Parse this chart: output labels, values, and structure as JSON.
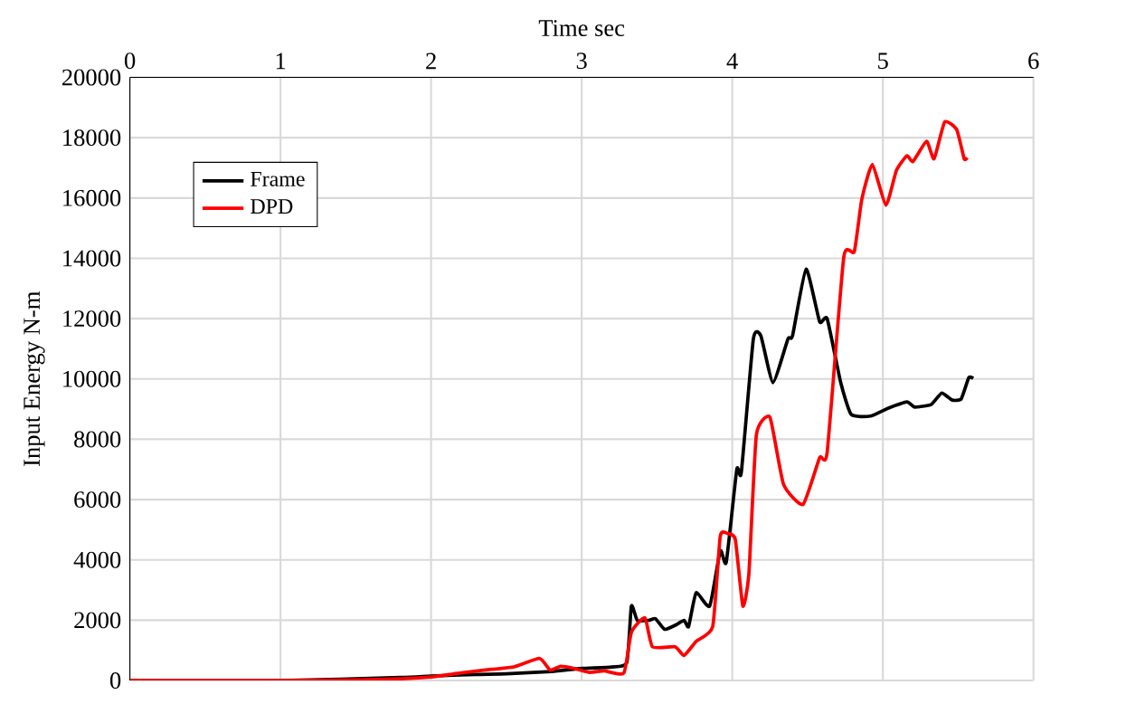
{
  "chart_data": {
    "type": "line",
    "xlabel": "Time sec",
    "ylabel": "Input Energy N-m",
    "xlim": [
      0,
      6
    ],
    "xticks": [
      0,
      1,
      2,
      3,
      4,
      5,
      6
    ],
    "ylim": [
      0,
      20000
    ],
    "yticks": [
      0,
      2000,
      4000,
      6000,
      8000,
      10000,
      12000,
      14000,
      16000,
      18000,
      20000
    ],
    "grid": true,
    "legend": "top left",
    "marker": "none",
    "line_style": "solid",
    "series": [
      {
        "name": "Frame",
        "color": "#000000",
        "x": [
          0,
          0.5,
          1,
          1.5,
          1.8,
          2.0,
          2.3,
          2.5,
          2.8,
          3.0,
          3.2,
          3.3,
          3.33,
          3.37,
          3.45,
          3.49,
          3.55,
          3.62,
          3.68,
          3.71,
          3.76,
          3.85,
          3.92,
          3.96,
          4.03,
          4.06,
          4.14,
          4.19,
          4.27,
          4.37,
          4.4,
          4.49,
          4.58,
          4.63,
          4.72,
          4.79,
          4.92,
          5.03,
          5.16,
          5.21,
          5.32,
          5.39,
          5.46,
          5.52,
          5.57,
          5.6
        ],
        "values": [
          0,
          0,
          0,
          null,
          100,
          150,
          200,
          220,
          300,
          400,
          450,
          600,
          2470,
          1990,
          2000,
          2050,
          1700,
          1830,
          1990,
          1790,
          2910,
          2470,
          4300,
          3920,
          7000,
          6900,
          11330,
          11430,
          9880,
          11330,
          11430,
          13640,
          11900,
          12000,
          9880,
          8820,
          8770,
          9020,
          9240,
          9070,
          9150,
          9530,
          9300,
          9340,
          10040,
          10020
        ]
      },
      {
        "name": "DPD",
        "color": "#ff0000",
        "x": [
          0,
          0.5,
          1,
          1.5,
          1.8,
          2.0,
          2.2,
          2.4,
          2.55,
          2.72,
          2.79,
          2.86,
          2.95,
          3.05,
          3.15,
          3.28,
          3.33,
          3.42,
          3.47,
          3.62,
          3.68,
          3.76,
          3.87,
          3.92,
          3.97,
          4.02,
          4.07,
          4.11,
          4.16,
          4.25,
          4.34,
          4.47,
          4.58,
          4.63,
          4.74,
          4.81,
          4.86,
          4.93,
          5.02,
          5.09,
          5.16,
          5.2,
          5.29,
          5.34,
          5.41,
          5.49,
          5.54,
          5.56
        ],
        "values": [
          0,
          0,
          0,
          20,
          60,
          120,
          250,
          370,
          450,
          730,
          350,
          470,
          400,
          270,
          320,
          250,
          1600,
          2080,
          1120,
          1120,
          830,
          1300,
          1790,
          4780,
          4870,
          4680,
          2470,
          3520,
          8150,
          8730,
          6510,
          5840,
          7390,
          7570,
          14030,
          14220,
          15950,
          17110,
          15760,
          16920,
          17400,
          17210,
          17880,
          17300,
          18520,
          18270,
          17300,
          17340
        ]
      }
    ]
  }
}
